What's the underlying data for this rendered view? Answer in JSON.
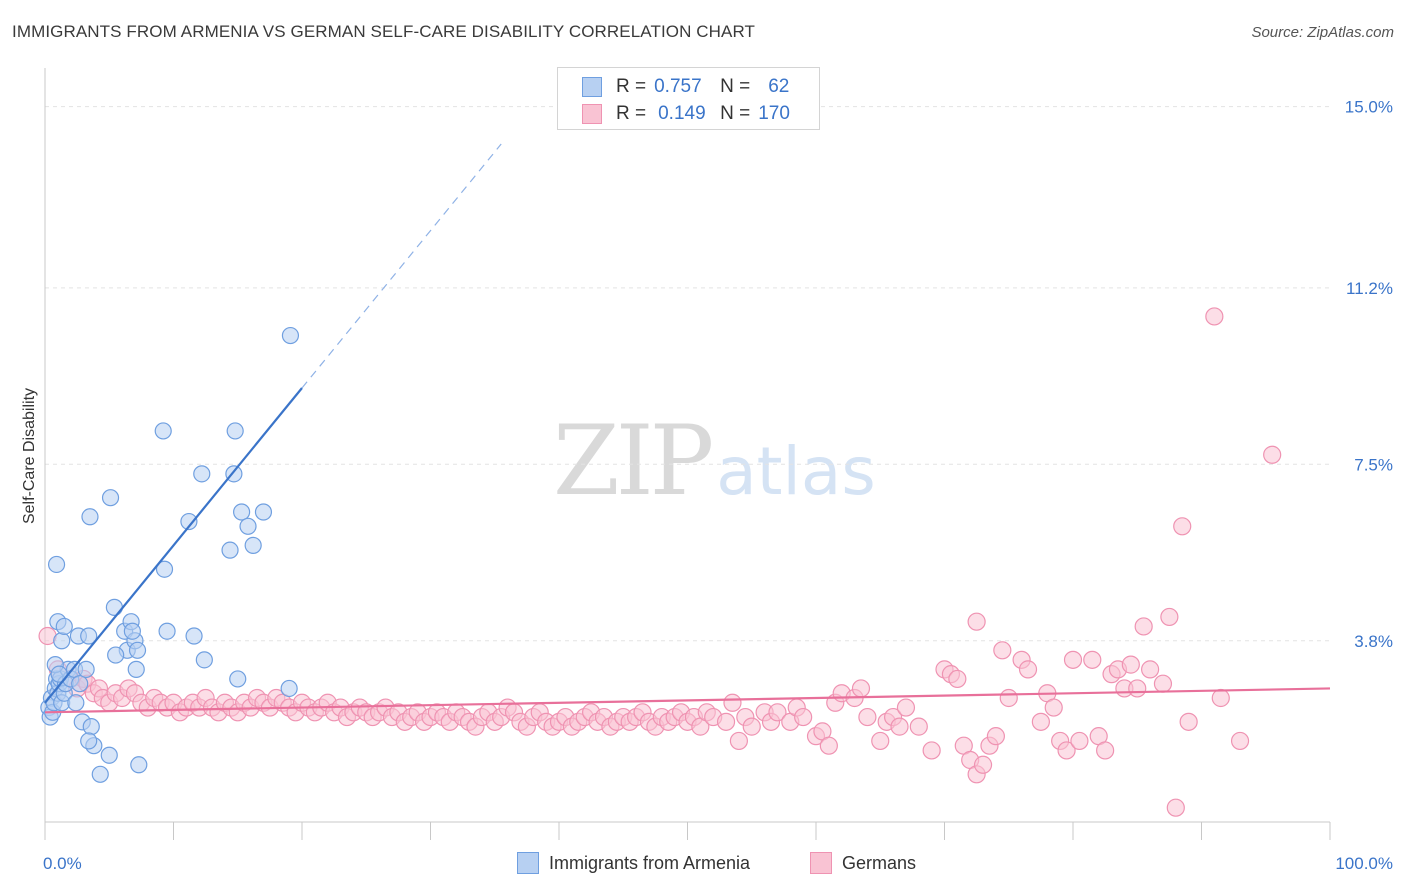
{
  "title": "IMMIGRANTS FROM ARMENIA VS GERMAN SELF-CARE DISABILITY CORRELATION CHART",
  "source": "Source: ZipAtlas.com",
  "watermark": {
    "zip": "ZIP",
    "atlas": "atlas"
  },
  "legend": {
    "series1": {
      "r_label": "R =",
      "r_value": "0.757",
      "n_label": "N =",
      "n_value": "62"
    },
    "series2": {
      "r_label": "R =",
      "r_value": "0.149",
      "n_label": "N =",
      "n_value": "170"
    }
  },
  "colors": {
    "blue": "#3a74c9",
    "blue_fill": "#b7d0f2",
    "blue_stroke": "#6f9fe0",
    "pink": "#e8709a",
    "pink_fill": "#f9c3d3",
    "pink_stroke": "#ef93b2",
    "grid": "#e3e3e3",
    "axis_text": "#3a74c9"
  },
  "chart_data": {
    "type": "scatter",
    "title": "IMMIGRANTS FROM ARMENIA VS GERMAN SELF-CARE DISABILITY CORRELATION CHART",
    "xlabel": "",
    "ylabel": "Self-Care Disability",
    "xlim": [
      0,
      100
    ],
    "ylim": [
      0,
      15.6
    ],
    "x_tick_labels": [
      "0.0%",
      "100.0%"
    ],
    "y_ticks": [
      3.8,
      7.5,
      11.2,
      15.0
    ],
    "y_tick_labels": [
      "3.8%",
      "7.5%",
      "11.2%",
      "15.0%"
    ],
    "series": [
      {
        "name": "Immigrants from Armenia",
        "color": "#3a74c9",
        "R": 0.757,
        "N": 62,
        "trend": {
          "x0": 0.0,
          "y0": 2.5,
          "x1": 20.0,
          "y1": 9.1,
          "dash_to_x": 35.5
        },
        "points": [
          [
            0.3,
            2.4
          ],
          [
            0.4,
            2.2
          ],
          [
            0.5,
            2.6
          ],
          [
            0.6,
            2.3
          ],
          [
            0.7,
            2.5
          ],
          [
            0.8,
            2.8
          ],
          [
            0.9,
            3.0
          ],
          [
            1.0,
            2.7
          ],
          [
            1.1,
            2.9
          ],
          [
            1.2,
            3.0
          ],
          [
            1.3,
            2.5
          ],
          [
            1.5,
            2.7
          ],
          [
            1.6,
            2.9
          ],
          [
            1.8,
            3.2
          ],
          [
            2.0,
            3.0
          ],
          [
            0.8,
            3.3
          ],
          [
            1.0,
            4.2
          ],
          [
            1.3,
            3.8
          ],
          [
            1.1,
            3.1
          ],
          [
            1.5,
            4.1
          ],
          [
            2.3,
            3.2
          ],
          [
            2.4,
            2.5
          ],
          [
            2.7,
            2.9
          ],
          [
            2.9,
            2.1
          ],
          [
            0.9,
            5.4
          ],
          [
            2.6,
            3.9
          ],
          [
            3.2,
            3.2
          ],
          [
            3.6,
            2.0
          ],
          [
            3.8,
            1.6
          ],
          [
            3.4,
            3.9
          ],
          [
            3.5,
            6.4
          ],
          [
            3.4,
            1.7
          ],
          [
            4.3,
            1.0
          ],
          [
            5.1,
            6.8
          ],
          [
            5.4,
            4.5
          ],
          [
            5.0,
            1.4
          ],
          [
            6.2,
            4.0
          ],
          [
            6.4,
            3.6
          ],
          [
            6.7,
            4.2
          ],
          [
            7.0,
            3.8
          ],
          [
            6.8,
            4.0
          ],
          [
            5.5,
            3.5
          ],
          [
            7.2,
            3.6
          ],
          [
            7.1,
            3.2
          ],
          [
            7.3,
            1.2
          ],
          [
            9.5,
            4.0
          ],
          [
            9.2,
            8.2
          ],
          [
            9.3,
            5.3
          ],
          [
            11.2,
            6.3
          ],
          [
            11.6,
            3.9
          ],
          [
            12.2,
            7.3
          ],
          [
            12.4,
            3.4
          ],
          [
            14.4,
            5.7
          ],
          [
            14.7,
            7.3
          ],
          [
            14.8,
            8.2
          ],
          [
            15.0,
            3.0
          ],
          [
            15.3,
            6.5
          ],
          [
            15.8,
            6.2
          ],
          [
            16.2,
            5.8
          ],
          [
            17.0,
            6.5
          ],
          [
            19.0,
            2.8
          ],
          [
            19.1,
            10.2
          ]
        ]
      },
      {
        "name": "Germans",
        "color": "#e8709a",
        "R": 0.149,
        "N": 170,
        "trend": {
          "x0": 0.0,
          "y0": 2.3,
          "x1": 100.0,
          "y1": 2.8
        },
        "points": [
          [
            0.2,
            3.9
          ],
          [
            1.0,
            3.2
          ],
          [
            2.0,
            3.0
          ],
          [
            2.5,
            2.8
          ],
          [
            3.0,
            3.0
          ],
          [
            3.3,
            2.9
          ],
          [
            3.8,
            2.7
          ],
          [
            4.2,
            2.8
          ],
          [
            4.5,
            2.6
          ],
          [
            5.0,
            2.5
          ],
          [
            5.5,
            2.7
          ],
          [
            6.0,
            2.6
          ],
          [
            6.5,
            2.8
          ],
          [
            7.0,
            2.7
          ],
          [
            7.5,
            2.5
          ],
          [
            8.0,
            2.4
          ],
          [
            8.5,
            2.6
          ],
          [
            9.0,
            2.5
          ],
          [
            9.5,
            2.4
          ],
          [
            10.0,
            2.5
          ],
          [
            10.5,
            2.3
          ],
          [
            11.0,
            2.4
          ],
          [
            11.5,
            2.5
          ],
          [
            12.0,
            2.4
          ],
          [
            12.5,
            2.6
          ],
          [
            13.0,
            2.4
          ],
          [
            13.5,
            2.3
          ],
          [
            14.0,
            2.5
          ],
          [
            14.5,
            2.4
          ],
          [
            15.0,
            2.3
          ],
          [
            15.5,
            2.5
          ],
          [
            16.0,
            2.4
          ],
          [
            16.5,
            2.6
          ],
          [
            17.0,
            2.5
          ],
          [
            17.5,
            2.4
          ],
          [
            18.0,
            2.6
          ],
          [
            18.5,
            2.5
          ],
          [
            19.0,
            2.4
          ],
          [
            19.5,
            2.3
          ],
          [
            20.0,
            2.5
          ],
          [
            20.5,
            2.4
          ],
          [
            21.0,
            2.3
          ],
          [
            21.5,
            2.4
          ],
          [
            22.0,
            2.5
          ],
          [
            22.5,
            2.3
          ],
          [
            23.0,
            2.4
          ],
          [
            23.5,
            2.2
          ],
          [
            24.0,
            2.3
          ],
          [
            24.5,
            2.4
          ],
          [
            25.0,
            2.3
          ],
          [
            25.5,
            2.2
          ],
          [
            26.0,
            2.3
          ],
          [
            26.5,
            2.4
          ],
          [
            27.0,
            2.2
          ],
          [
            27.5,
            2.3
          ],
          [
            28.0,
            2.1
          ],
          [
            28.5,
            2.2
          ],
          [
            29.0,
            2.3
          ],
          [
            29.5,
            2.1
          ],
          [
            30.0,
            2.2
          ],
          [
            30.5,
            2.3
          ],
          [
            31.0,
            2.2
          ],
          [
            31.5,
            2.1
          ],
          [
            32.0,
            2.3
          ],
          [
            32.5,
            2.2
          ],
          [
            33.0,
            2.1
          ],
          [
            33.5,
            2.0
          ],
          [
            34.0,
            2.2
          ],
          [
            34.5,
            2.3
          ],
          [
            35.0,
            2.1
          ],
          [
            35.5,
            2.2
          ],
          [
            36.0,
            2.4
          ],
          [
            36.5,
            2.3
          ],
          [
            37.0,
            2.1
          ],
          [
            37.5,
            2.0
          ],
          [
            38.0,
            2.2
          ],
          [
            38.5,
            2.3
          ],
          [
            39.0,
            2.1
          ],
          [
            39.5,
            2.0
          ],
          [
            40.0,
            2.1
          ],
          [
            40.5,
            2.2
          ],
          [
            41.0,
            2.0
          ],
          [
            41.5,
            2.1
          ],
          [
            42.0,
            2.2
          ],
          [
            42.5,
            2.3
          ],
          [
            43.0,
            2.1
          ],
          [
            43.5,
            2.2
          ],
          [
            44.0,
            2.0
          ],
          [
            44.5,
            2.1
          ],
          [
            45.0,
            2.2
          ],
          [
            45.5,
            2.1
          ],
          [
            46.0,
            2.2
          ],
          [
            46.5,
            2.3
          ],
          [
            47.0,
            2.1
          ],
          [
            47.5,
            2.0
          ],
          [
            48.0,
            2.2
          ],
          [
            48.5,
            2.1
          ],
          [
            49.0,
            2.2
          ],
          [
            49.5,
            2.3
          ],
          [
            50.0,
            2.1
          ],
          [
            50.5,
            2.2
          ],
          [
            51.0,
            2.0
          ],
          [
            51.5,
            2.3
          ],
          [
            52.0,
            2.2
          ],
          [
            53.0,
            2.1
          ],
          [
            53.5,
            2.5
          ],
          [
            54.0,
            1.7
          ],
          [
            54.5,
            2.2
          ],
          [
            55.0,
            2.0
          ],
          [
            56.0,
            2.3
          ],
          [
            56.5,
            2.1
          ],
          [
            57.0,
            2.3
          ],
          [
            58.0,
            2.1
          ],
          [
            58.5,
            2.4
          ],
          [
            59.0,
            2.2
          ],
          [
            60.0,
            1.8
          ],
          [
            60.5,
            1.9
          ],
          [
            61.0,
            1.6
          ],
          [
            61.5,
            2.5
          ],
          [
            62.0,
            2.7
          ],
          [
            63.0,
            2.6
          ],
          [
            63.5,
            2.8
          ],
          [
            64.0,
            2.2
          ],
          [
            65.0,
            1.7
          ],
          [
            65.5,
            2.1
          ],
          [
            66.0,
            2.2
          ],
          [
            66.5,
            2.0
          ],
          [
            67.0,
            2.4
          ],
          [
            68.0,
            2.0
          ],
          [
            69.0,
            1.5
          ],
          [
            70.0,
            3.2
          ],
          [
            70.5,
            3.1
          ],
          [
            71.0,
            3.0
          ],
          [
            71.5,
            1.6
          ],
          [
            72.0,
            1.3
          ],
          [
            72.5,
            1.0
          ],
          [
            73.0,
            1.2
          ],
          [
            73.5,
            1.6
          ],
          [
            74.0,
            1.8
          ],
          [
            74.5,
            3.6
          ],
          [
            75.0,
            2.6
          ],
          [
            76.0,
            3.4
          ],
          [
            76.5,
            3.2
          ],
          [
            77.5,
            2.1
          ],
          [
            78.0,
            2.7
          ],
          [
            78.5,
            2.4
          ],
          [
            79.0,
            1.7
          ],
          [
            79.5,
            1.5
          ],
          [
            80.0,
            3.4
          ],
          [
            80.5,
            1.7
          ],
          [
            81.5,
            3.4
          ],
          [
            82.0,
            1.8
          ],
          [
            82.5,
            1.5
          ],
          [
            83.0,
            3.1
          ],
          [
            83.5,
            3.2
          ],
          [
            84.0,
            2.8
          ],
          [
            84.5,
            3.3
          ],
          [
            85.0,
            2.8
          ],
          [
            85.5,
            4.1
          ],
          [
            86.0,
            3.2
          ],
          [
            87.0,
            2.9
          ],
          [
            87.5,
            4.3
          ],
          [
            88.0,
            0.3
          ],
          [
            88.5,
            6.2
          ],
          [
            89.0,
            2.1
          ],
          [
            91.5,
            2.6
          ],
          [
            91.0,
            10.6
          ],
          [
            93.0,
            1.7
          ],
          [
            95.5,
            7.7
          ],
          [
            72.5,
            4.2
          ]
        ]
      }
    ]
  },
  "bottom_legend": {
    "series1": "Immigrants from Armenia",
    "series2": "Germans"
  }
}
